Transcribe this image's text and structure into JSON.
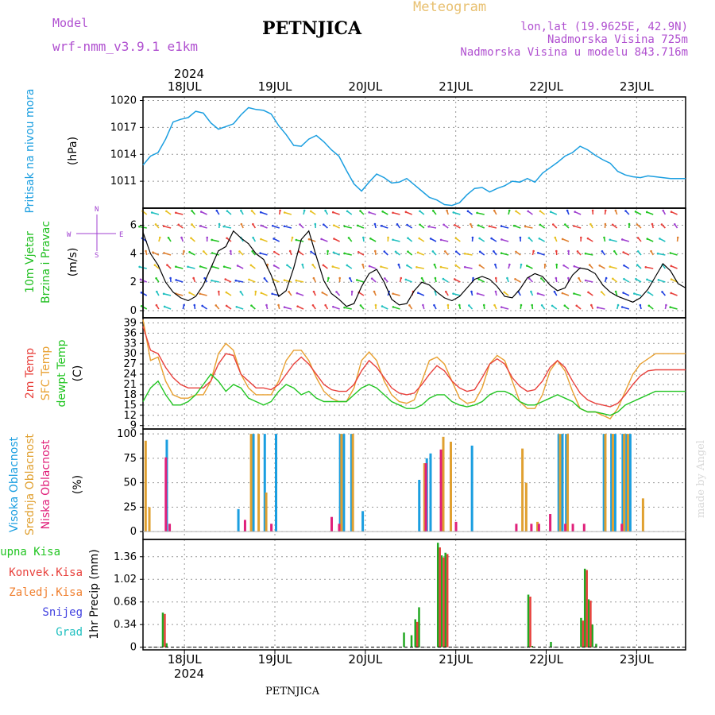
{
  "header": {
    "model_label": "Model",
    "model_name": "wrf-nmm_v3.9.1  e1km",
    "station": "PETNJICA",
    "product": "Meteogram",
    "lonlat": "lon,lat (19.9625E, 42.9N)",
    "altitude": "Nadmorska Visina 725m",
    "model_altitude": "Nadmorska Visina u modelu 843.716m",
    "footer_station": "PETNJICA",
    "credit": "made by Angel",
    "year": "2024"
  },
  "colors": {
    "pressure": "#1a9ee0",
    "wind_label": "#1fbf1f",
    "t2m": "#e8413c",
    "sfc": "#e8a030",
    "dewpt": "#22c522",
    "high_cloud": "#1a9ee0",
    "mid_cloud": "#e0a030",
    "low_cloud": "#e0207a",
    "total_precip": "#22a822",
    "conv_precip": "#e8413c",
    "frozen_precip": "#f08030",
    "snow": "#4040e0",
    "hail": "#20c0c0",
    "grid": "#999999",
    "compass": "#a040d0"
  },
  "labels": {
    "pressure": "Pritisak na nivou mora",
    "pressure_unit": "(hPa)",
    "wind1": "10m Vjetar",
    "wind2": "Brzina i Pravac",
    "wind_unit": "(m/s)",
    "temp1": "2m Temp",
    "temp2": "SFC Temp",
    "temp3": "dewpt Temp",
    "temp_unit": "(C)",
    "cloud1": "Visoka Oblacnost",
    "cloud2": "Srednja Oblacnost",
    "cloud3": "Niska Oblacnost",
    "cloud_unit": "(%)",
    "precip_title": "1hr Precip (mm)",
    "precip_legend": [
      "Ukupna Kisa",
      "Konvek.Kisa",
      "Zaledj.Kisa",
      "Snijeg",
      "Grad"
    ],
    "compass": {
      "n": "N",
      "s": "S",
      "w": "W",
      "e": "E"
    }
  },
  "chart_data": [
    {
      "type": "line",
      "panel": "pressure",
      "x_start": "2024-07-17 13:00",
      "x_end": "2024-07-23 13:00",
      "x_ticks": [
        "18JUL",
        "19JUL",
        "20JUL",
        "21JUL",
        "22JUL",
        "23JUL"
      ],
      "ylabel": "(hPa)",
      "ylim": [
        1008,
        1020.4
      ],
      "y_ticks": [
        1011,
        1014,
        1017,
        1020
      ],
      "series": [
        {
          "name": "Pritisak na nivou mora",
          "x": [
            0,
            2,
            4,
            6,
            8,
            10,
            12,
            14,
            16,
            18,
            20,
            22,
            24,
            26,
            28,
            30,
            32,
            34,
            36,
            38,
            40,
            42,
            44,
            46,
            48,
            50,
            52,
            54,
            56,
            58,
            60,
            62,
            64,
            66,
            68,
            70,
            72,
            74,
            76,
            78,
            80,
            82,
            84,
            86,
            88,
            90,
            92,
            94,
            96,
            98,
            100,
            102,
            104,
            106,
            108,
            110,
            112,
            114,
            116,
            118,
            120,
            122,
            124,
            126,
            128,
            130,
            132,
            134,
            136,
            138,
            140,
            142,
            144
          ],
          "values": [
            1012.8,
            1013.8,
            1014.2,
            1015.7,
            1017.6,
            1017.9,
            1018.1,
            1018.8,
            1018.6,
            1017.5,
            1016.8,
            1017.1,
            1017.4,
            1018.4,
            1019.2,
            1019.0,
            1018.9,
            1018.5,
            1017.2,
            1016.2,
            1015.0,
            1014.9,
            1015.7,
            1016.1,
            1015.4,
            1014.5,
            1013.8,
            1012.2,
            1010.7,
            1009.9,
            1010.9,
            1011.8,
            1011.4,
            1010.8,
            1010.9,
            1011.3,
            1010.6,
            1009.9,
            1009.2,
            1008.9,
            1008.4,
            1008.3,
            1008.6,
            1009.5,
            1010.2,
            1010.3,
            1009.8,
            1010.2,
            1010.5,
            1011.0,
            1010.9,
            1011.3,
            1010.9,
            1011.9,
            1012.5,
            1013.1,
            1013.8,
            1014.2,
            1014.9,
            1014.5,
            1013.9,
            1013.4,
            1013.0,
            1012.1,
            1011.7,
            1011.5,
            1011.4,
            1011.6,
            1011.5,
            1011.4,
            1011.3,
            1011.3,
            1011.3
          ]
        }
      ]
    },
    {
      "type": "line",
      "panel": "wind",
      "ylabel": "(m/s)",
      "ylim": [
        -0.5,
        7.2
      ],
      "y_ticks": [
        0,
        2,
        4,
        6
      ],
      "series": [
        {
          "name": "10m Vjetar",
          "x": [
            0,
            2,
            4,
            6,
            8,
            10,
            12,
            14,
            16,
            18,
            20,
            22,
            24,
            26,
            28,
            30,
            32,
            34,
            36,
            38,
            40,
            42,
            44,
            46,
            48,
            50,
            52,
            54,
            56,
            58,
            60,
            62,
            64,
            66,
            68,
            70,
            72,
            74,
            76,
            78,
            80,
            82,
            84,
            86,
            88,
            90,
            92,
            94,
            96,
            98,
            100,
            102,
            104,
            106,
            108,
            110,
            112,
            114,
            116,
            118,
            120,
            122,
            124,
            126,
            128,
            130,
            132,
            134,
            136,
            138,
            140,
            142,
            144
          ],
          "values": [
            5.5,
            4.0,
            3.2,
            2.0,
            1.3,
            0.9,
            0.7,
            1.0,
            1.8,
            3.0,
            4.2,
            4.5,
            5.6,
            5.1,
            4.7,
            4.0,
            3.6,
            2.5,
            1.0,
            1.4,
            3.0,
            5.0,
            5.6,
            3.8,
            2.1,
            1.2,
            0.8,
            0.3,
            0.5,
            1.7,
            2.6,
            2.9,
            2.0,
            0.8,
            0.4,
            0.5,
            1.4,
            2.0,
            1.8,
            1.3,
            0.9,
            0.7,
            1.0,
            1.6,
            2.2,
            2.4,
            2.2,
            1.7,
            1.0,
            0.9,
            1.5,
            2.3,
            2.6,
            2.4,
            1.8,
            1.4,
            1.6,
            2.5,
            3.0,
            2.9,
            2.6,
            1.8,
            1.3,
            1.0,
            0.8,
            0.6,
            0.9,
            1.5,
            2.4,
            3.3,
            2.8,
            1.9,
            1.6
          ]
        }
      ]
    },
    {
      "type": "line",
      "panel": "temperature",
      "ylabel": "(C)",
      "ylim": [
        8,
        40.5
      ],
      "y_ticks": [
        9,
        12,
        15,
        18,
        21,
        24,
        27,
        30,
        33,
        36,
        39
      ],
      "series": [
        {
          "name": "2m Temp",
          "x": [
            0,
            2,
            4,
            6,
            8,
            10,
            12,
            14,
            16,
            18,
            20,
            22,
            24,
            26,
            28,
            30,
            32,
            34,
            36,
            38,
            40,
            42,
            44,
            46,
            48,
            50,
            52,
            54,
            56,
            58,
            60,
            62,
            64,
            66,
            68,
            70,
            72,
            74,
            76,
            78,
            80,
            82,
            84,
            86,
            88,
            90,
            92,
            94,
            96,
            98,
            100,
            102,
            104,
            106,
            108,
            110,
            112,
            114,
            116,
            118,
            120,
            122,
            124,
            126,
            128,
            130,
            132,
            134,
            136,
            138,
            140,
            142,
            144
          ],
          "values": [
            38,
            31,
            30,
            26,
            23,
            21,
            20,
            20,
            20,
            22,
            27,
            30,
            29.5,
            24,
            22,
            20,
            20,
            19.5,
            21,
            24,
            27,
            29,
            27,
            24,
            21,
            19.5,
            19,
            19,
            21,
            25,
            28,
            26,
            23,
            20,
            18.5,
            18,
            18.5,
            21,
            24,
            26.5,
            25,
            22,
            20,
            19,
            19.5,
            23,
            27,
            28.5,
            27,
            23,
            20.5,
            19,
            19.5,
            22,
            26,
            28,
            26,
            22,
            18.5,
            16.5,
            15.5,
            15,
            14.5,
            15.5,
            18,
            21,
            23.5,
            25,
            25.3,
            25.3,
            25.3,
            25.3,
            25.3
          ]
        },
        {
          "name": "SFC Temp",
          "x": [
            0,
            2,
            4,
            6,
            8,
            10,
            12,
            14,
            16,
            18,
            20,
            22,
            24,
            26,
            28,
            30,
            32,
            34,
            36,
            38,
            40,
            42,
            44,
            46,
            48,
            50,
            52,
            54,
            56,
            58,
            60,
            62,
            64,
            66,
            68,
            70,
            72,
            74,
            76,
            78,
            80,
            82,
            84,
            86,
            88,
            90,
            92,
            94,
            96,
            98,
            100,
            102,
            104,
            106,
            108,
            110,
            112,
            114,
            116,
            118,
            120,
            122,
            124,
            126,
            128,
            130,
            132,
            134,
            136,
            138,
            140,
            142,
            144
          ],
          "values": [
            40,
            28,
            29,
            22,
            18,
            17,
            17,
            18,
            18,
            22,
            30,
            33,
            31,
            24,
            20,
            18,
            18,
            18,
            22,
            28,
            31,
            31,
            28,
            23,
            19,
            17,
            16,
            16,
            20,
            28,
            30.5,
            28,
            22,
            18,
            16,
            15.5,
            16.5,
            22,
            28,
            29,
            27,
            22,
            17,
            15.5,
            16,
            20,
            27,
            29.5,
            28,
            22,
            16,
            14,
            14,
            18,
            25,
            28,
            25,
            19,
            14,
            13,
            13,
            12,
            11,
            14,
            19,
            24,
            27,
            28.5,
            30,
            30,
            30,
            30,
            30
          ]
        },
        {
          "name": "dewpt Temp",
          "x": [
            0,
            2,
            4,
            6,
            8,
            10,
            12,
            14,
            16,
            18,
            20,
            22,
            24,
            26,
            28,
            30,
            32,
            34,
            36,
            38,
            40,
            42,
            44,
            46,
            48,
            50,
            52,
            54,
            56,
            58,
            60,
            62,
            64,
            66,
            68,
            70,
            72,
            74,
            76,
            78,
            80,
            82,
            84,
            86,
            88,
            90,
            92,
            94,
            96,
            98,
            100,
            102,
            104,
            106,
            108,
            110,
            112,
            114,
            116,
            118,
            120,
            122,
            124,
            126,
            128,
            130,
            132,
            134,
            136,
            138,
            140,
            142,
            144
          ],
          "values": [
            16,
            20,
            22,
            18,
            15,
            15,
            16,
            18,
            21,
            24,
            22,
            19,
            21,
            20,
            17,
            16,
            15,
            16,
            19,
            21,
            20,
            18,
            19,
            17,
            16,
            16,
            16,
            16,
            18,
            20,
            21,
            20,
            18,
            16,
            15,
            14,
            14,
            15,
            17,
            18,
            18,
            16,
            15,
            14.5,
            15,
            16,
            18,
            19,
            19,
            18,
            16,
            15,
            15,
            16,
            17,
            18,
            17,
            16,
            14,
            13,
            13,
            12.5,
            12,
            13,
            15,
            16,
            17,
            18,
            19,
            19,
            19,
            19,
            19
          ]
        }
      ]
    },
    {
      "type": "bar",
      "panel": "cloud",
      "ylabel": "(%)",
      "ylim": [
        -8,
        105
      ],
      "y_ticks": [
        0,
        25,
        50,
        75,
        100
      ],
      "series": [
        {
          "name": "Visoka Oblacnost",
          "x": [
            6,
            25,
            29,
            32,
            35,
            52,
            53,
            55,
            58,
            73,
            75,
            76,
            87,
            110,
            111,
            112,
            122,
            124,
            125,
            127,
            128,
            129
          ],
          "values": [
            94,
            23,
            100,
            100,
            100,
            100,
            100,
            100,
            21,
            53,
            75,
            80,
            88,
            100,
            100,
            100,
            100,
            100,
            100,
            100,
            100,
            100
          ]
        },
        {
          "name": "Srednja Oblacnost",
          "x": [
            0,
            1,
            28,
            30,
            32,
            52,
            55,
            74,
            79,
            81,
            100,
            101,
            104,
            110,
            112,
            120,
            122,
            124,
            127,
            128,
            132
          ],
          "values": [
            93,
            25,
            100,
            100,
            40,
            100,
            100,
            70,
            97,
            92,
            85,
            50,
            10,
            100,
            100,
            0,
            100,
            100,
            100,
            100,
            34
          ]
        },
        {
          "name": "Niska Oblacnost",
          "x": [
            5,
            6,
            26,
            33,
            49,
            51,
            74,
            78,
            82,
            98,
            102,
            104,
            107,
            111,
            113,
            116,
            126
          ],
          "values": [
            76,
            8,
            12,
            8,
            15,
            8,
            70,
            84,
            10,
            8,
            8,
            8,
            18,
            8,
            8,
            8,
            8
          ]
        }
      ]
    },
    {
      "type": "bar",
      "panel": "precipitation",
      "ylabel": "1hr Precip (mm)",
      "ylim": [
        -0.04,
        1.62
      ],
      "y_ticks": [
        0,
        0.34,
        0.68,
        1.02,
        1.36
      ],
      "series": [
        {
          "name": "Ukupna Kisa",
          "x": [
            5,
            6,
            69,
            71,
            72,
            73,
            78,
            79,
            80,
            102,
            103,
            108,
            116,
            117,
            118,
            119,
            120
          ],
          "values": [
            0.52,
            0.06,
            0.22,
            0.18,
            0.42,
            0.6,
            1.57,
            1.38,
            1.42,
            0.79,
            0.02,
            0.08,
            0.44,
            1.18,
            0.72,
            0.34,
            0.05
          ]
        },
        {
          "name": "Konvek.Kisa",
          "x": [
            5,
            72,
            78,
            79,
            80,
            102,
            116,
            117,
            118
          ],
          "values": [
            0.5,
            0.38,
            1.5,
            1.35,
            1.4,
            0.76,
            0.4,
            1.16,
            0.7
          ]
        }
      ]
    }
  ]
}
